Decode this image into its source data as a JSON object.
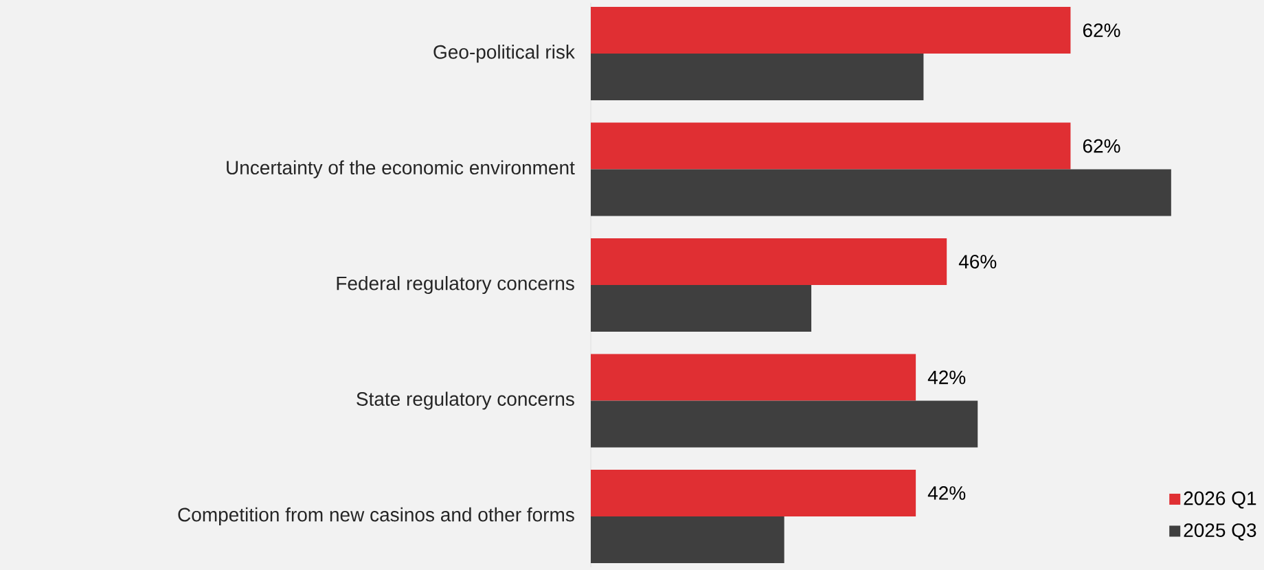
{
  "chart_data": {
    "type": "bar",
    "orientation": "horizontal",
    "categories": [
      "Geo-political risk",
      "Uncertainty of the economic environment",
      "Federal regulatory concerns",
      "State regulatory concerns",
      "Competition from new casinos and other forms"
    ],
    "series": [
      {
        "name": "2026 Q1",
        "color": "#e02f33",
        "values": [
          62,
          62,
          46,
          42,
          42
        ],
        "value_labels": [
          "62%",
          "62%",
          "46%",
          "42%",
          "42%"
        ]
      },
      {
        "name": "2025 Q3",
        "color": "#3f3f3f",
        "values": [
          43,
          75,
          28.5,
          50,
          25
        ]
      }
    ],
    "xlim": [
      0,
      87
    ],
    "tick_labels": "y",
    "legend": "bottom right"
  }
}
